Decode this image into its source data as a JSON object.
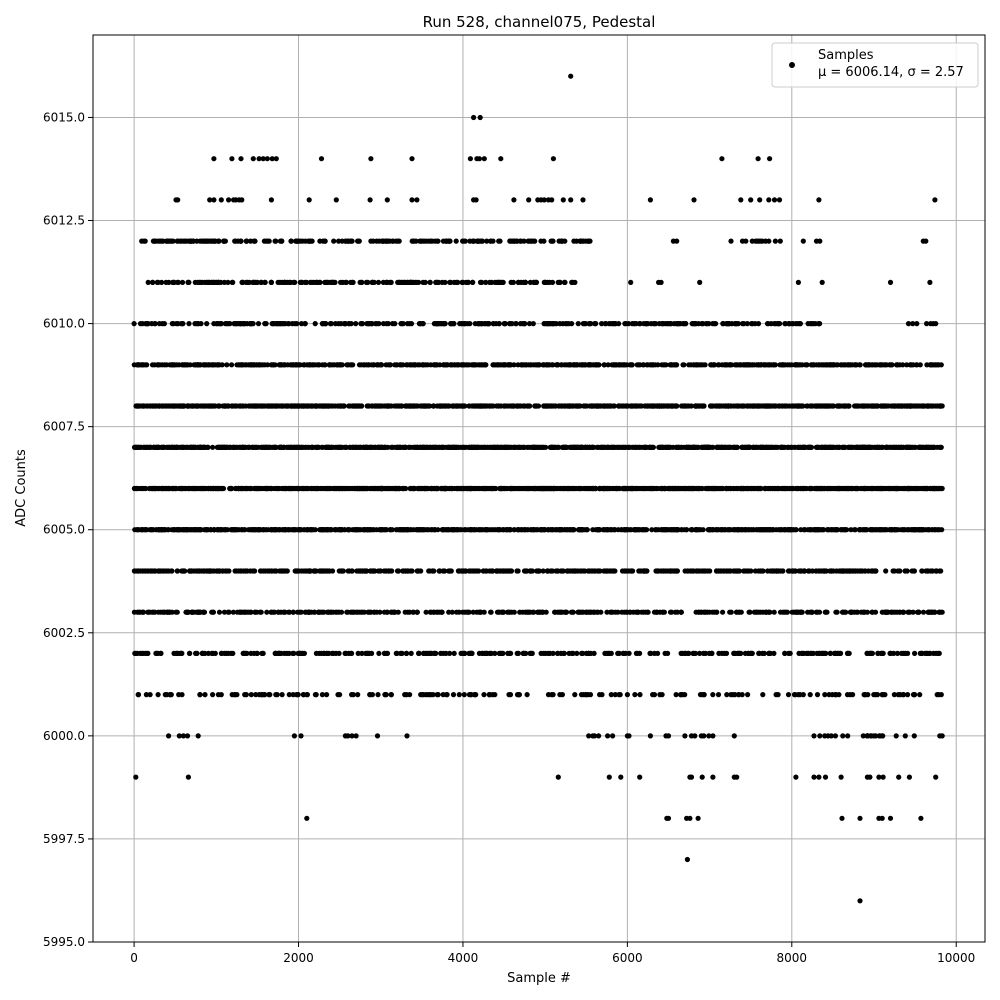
{
  "chart_data": {
    "type": "scatter",
    "title": "Run 528, channel075, Pedestal",
    "xlabel": "Sample #",
    "ylabel": "ADC Counts",
    "xlim": [
      -500,
      10350
    ],
    "ylim": [
      5995.0,
      6017.0
    ],
    "xticks": [
      0,
      2000,
      4000,
      6000,
      8000,
      10000
    ],
    "xtick_labels": [
      "0",
      "2000",
      "4000",
      "6000",
      "8000",
      "10000"
    ],
    "yticks": [
      5995.0,
      5997.5,
      6000.0,
      6002.5,
      6005.0,
      6007.5,
      6010.0,
      6012.5,
      6015.0
    ],
    "ytick_labels": [
      "5995.0",
      "5997.5",
      "6000.0",
      "6002.5",
      "6005.0",
      "6007.5",
      "6010.0",
      "6012.5",
      "6015.0"
    ],
    "grid": true,
    "legend": {
      "placement": "top-right",
      "label": "Samples",
      "stats": "μ = 6006.14, σ = 2.57"
    },
    "series": [
      {
        "name": "Samples",
        "color": "#000000",
        "bands": [
          {
            "y": 5996,
            "x": [
              8830
            ]
          },
          {
            "y": 5997,
            "x": [
              6730
            ]
          },
          {
            "y": 5998,
            "x": [
              2100,
              6480,
              6500,
              6720,
              6760,
              6860,
              8610,
              8830,
              9060,
              9100,
              9200,
              9570
            ]
          },
          {
            "y": 5999,
            "x": [
              20,
              660,
              5160,
              5780,
              5920,
              6150,
              6760,
              6780,
              6910,
              7040,
              7300,
              7330,
              8050,
              8270,
              8330,
              8410,
              8600,
              8920,
              8950,
              9060,
              9110,
              9300,
              9430,
              9750
            ]
          },
          {
            "y": 6000,
            "x": [
              420,
              550,
              600,
              650,
              780,
              1950,
              2030,
              2570,
              2600,
              2650,
              2700,
              2960,
              3320,
              5530,
              5580,
              5600,
              5650,
              5760,
              5820,
              6000,
              6020,
              6280,
              6470,
              6500,
              6700,
              6780,
              6820,
              6900,
              6930,
              6990,
              7040,
              7300,
              8270,
              8340,
              8400,
              8440,
              8480,
              8530,
              8620,
              8680,
              8870,
              8920,
              8970,
              9020,
              9100,
              9270,
              9380,
              9490,
              9800,
              9830
            ],
            "range": [
              8850,
              9150
            ],
            "n": 8,
            "seed": 5
          },
          {
            "y": 6001,
            "x": [
              380,
              440,
              1640,
              1800,
              2100,
              2290,
              2480,
              2720,
              3520,
              3600,
              3800,
              4100,
              4320,
              4560,
              4680,
              4780,
              5040,
              5360,
              5520,
              8100
            ],
            "range": [
              0,
              9820
            ],
            "n": 170,
            "seed": 6
          },
          {
            "y": 6002,
            "x": [
              830,
              960,
              1100,
              1350,
              1460
            ],
            "range": [
              0,
              9830
            ],
            "n": 320,
            "seed": 7
          },
          {
            "y": 6003,
            "x": [],
            "range": [
              0,
              9830
            ],
            "n": 420,
            "seed": 8
          },
          {
            "y": 6004,
            "x": [],
            "range": [
              0,
              9830
            ],
            "n": 560,
            "seed": 9
          },
          {
            "y": 6005,
            "x": [],
            "range": [
              0,
              9830
            ],
            "n": 900,
            "seed": 10
          },
          {
            "y": 6006,
            "x": [],
            "range": [
              0,
              9830
            ],
            "n": 1100,
            "seed": 11
          },
          {
            "y": 6007,
            "x": [],
            "range": [
              0,
              9830
            ],
            "n": 1100,
            "seed": 12
          },
          {
            "y": 6008,
            "x": [],
            "range": [
              0,
              9830
            ],
            "n": 900,
            "seed": 13
          },
          {
            "y": 6009,
            "x": [],
            "range": [
              0,
              9830
            ],
            "n": 620,
            "seed": 14
          },
          {
            "y": 6010,
            "x": [
              0,
              5730,
              5830,
              6200,
              6290,
              6330,
              6680,
              6800,
              6820,
              9420,
              9470,
              9520,
              9640,
              9690,
              9720,
              9750
            ],
            "range": [
              60,
              8420
            ],
            "n": 330,
            "seed": 15
          },
          {
            "y": 6011,
            "x": [
              6040,
              6380,
              6410,
              6880,
              8080,
              8370,
              9200,
              9680
            ],
            "range": [
              170,
              5470
            ],
            "n": 200,
            "seed": 16
          },
          {
            "y": 6012,
            "x": [
              6560,
              6600,
              7260,
              7400,
              7440,
              7520,
              7560,
              7580,
              7600,
              7620,
              7640,
              7680,
              7720,
              7800,
              7860,
              8140,
              8300,
              8340,
              9600,
              9630
            ],
            "range": [
              90,
              5560
            ],
            "n": 210,
            "seed": 17
          },
          {
            "y": 6013,
            "x": [
              510,
              530,
              920,
              970,
              1060,
              1150,
              1210,
              1240,
              1280,
              1310,
              1670,
              2130,
              2460,
              2870,
              3080,
              3380,
              3440,
              4130,
              4160,
              4620,
              4800,
              4910,
              4950,
              4990,
              5040,
              5080,
              5220,
              5310,
              5460,
              6280,
              6810,
              7380,
              7500,
              7610,
              7720,
              7790,
              7850,
              8330,
              9740
            ]
          },
          {
            "y": 6014,
            "x": [
              970,
              1190,
              1300,
              1450,
              1520,
              1570,
              1620,
              1680,
              1730,
              2280,
              2880,
              3380,
              4090,
              4170,
              4200,
              4260,
              4460,
              5100,
              7150,
              7590,
              7730
            ]
          },
          {
            "y": 6015,
            "x": [
              4130,
              4210
            ]
          },
          {
            "y": 6016,
            "x": [
              5310
            ]
          }
        ]
      }
    ]
  }
}
